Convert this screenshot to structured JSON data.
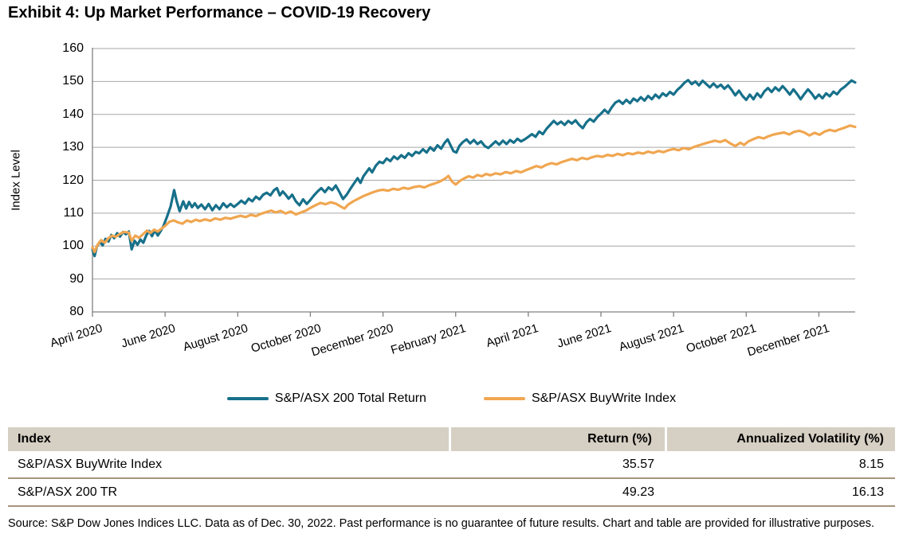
{
  "title": "Exhibit 4: Up Market Performance – COVID-19 Recovery",
  "source_note": "Source: S&P Dow Jones Indices LLC. Data as of Dec. 30, 2022. Past performance is no guarantee of future results. Chart and table are provided for illustrative purposes.",
  "colors": {
    "asx200_line": "#17708a",
    "buywrite_line": "#f0a650",
    "gridline": "#a6a6a6",
    "axis": "#808080",
    "table_header_bg": "#d6cfc3",
    "table_border": "#a5947c"
  },
  "table": {
    "columns": [
      "Index",
      "Return (%)",
      "Annualized Volatility (%)"
    ],
    "rows": [
      {
        "index": "S&P/ASX BuyWrite Index",
        "return": "35.57",
        "volatility": "8.15"
      },
      {
        "index": "S&P/ASX 200 TR",
        "return": "49.23",
        "volatility": "16.13"
      }
    ]
  },
  "chart_data": {
    "type": "line",
    "title": "Exhibit 4: Up Market Performance – COVID-19 Recovery",
    "xlabel": "",
    "ylabel": "Index Level",
    "ylim": [
      80,
      160
    ],
    "yticks": [
      80,
      90,
      100,
      110,
      120,
      130,
      140,
      150,
      160
    ],
    "grid": "horizontal",
    "legend_position": "bottom",
    "x_unit": "months since April 2020",
    "x_range": [
      0,
      21
    ],
    "x_tick_months": [
      0,
      2,
      4,
      6,
      8,
      10,
      12,
      14,
      16,
      18,
      20
    ],
    "x_tick_labels": [
      "April 2020",
      "June 2020",
      "August 2020",
      "October 2020",
      "December 2020",
      "February 2021",
      "April 2021",
      "June 2021",
      "August 2021",
      "October 2021",
      "December 2021"
    ],
    "series": [
      {
        "name": "S&P/ASX 200 Total Return",
        "color": "#17708a",
        "x": [
          0.0,
          0.06,
          0.12,
          0.2,
          0.28,
          0.36,
          0.44,
          0.52,
          0.6,
          0.68,
          0.76,
          0.84,
          0.92,
          1.0,
          1.08,
          1.16,
          1.24,
          1.32,
          1.4,
          1.48,
          1.56,
          1.64,
          1.72,
          1.8,
          1.88,
          1.96,
          2.05,
          2.15,
          2.25,
          2.32,
          2.4,
          2.5,
          2.58,
          2.66,
          2.74,
          2.82,
          2.9,
          3.0,
          3.1,
          3.2,
          3.3,
          3.4,
          3.5,
          3.6,
          3.7,
          3.8,
          3.9,
          4.0,
          4.1,
          4.2,
          4.3,
          4.4,
          4.5,
          4.6,
          4.7,
          4.8,
          4.9,
          5.0,
          5.08,
          5.16,
          5.24,
          5.32,
          5.4,
          5.5,
          5.6,
          5.7,
          5.8,
          5.9,
          6.0,
          6.1,
          6.2,
          6.3,
          6.4,
          6.5,
          6.6,
          6.7,
          6.8,
          6.9,
          7.0,
          7.1,
          7.2,
          7.3,
          7.38,
          7.46,
          7.54,
          7.62,
          7.7,
          7.8,
          7.9,
          8.0,
          8.1,
          8.2,
          8.3,
          8.4,
          8.5,
          8.6,
          8.7,
          8.8,
          8.9,
          9.0,
          9.1,
          9.2,
          9.3,
          9.4,
          9.5,
          9.6,
          9.7,
          9.78,
          9.86,
          9.94,
          10.02,
          10.1,
          10.2,
          10.3,
          10.4,
          10.5,
          10.6,
          10.7,
          10.8,
          10.9,
          11.0,
          11.1,
          11.2,
          11.3,
          11.4,
          11.5,
          11.6,
          11.7,
          11.8,
          11.9,
          12.0,
          12.1,
          12.2,
          12.3,
          12.4,
          12.5,
          12.6,
          12.7,
          12.8,
          12.9,
          13.0,
          13.1,
          13.2,
          13.3,
          13.4,
          13.5,
          13.6,
          13.7,
          13.8,
          13.9,
          14.0,
          14.1,
          14.2,
          14.3,
          14.4,
          14.5,
          14.6,
          14.7,
          14.8,
          14.9,
          15.0,
          15.1,
          15.2,
          15.3,
          15.4,
          15.5,
          15.6,
          15.7,
          15.8,
          15.9,
          16.0,
          16.1,
          16.2,
          16.3,
          16.4,
          16.5,
          16.6,
          16.7,
          16.8,
          16.9,
          17.0,
          17.1,
          17.2,
          17.3,
          17.4,
          17.5,
          17.6,
          17.7,
          17.8,
          17.9,
          18.0,
          18.1,
          18.2,
          18.3,
          18.4,
          18.5,
          18.6,
          18.7,
          18.8,
          18.9,
          19.0,
          19.1,
          19.2,
          19.3,
          19.4,
          19.5,
          19.6,
          19.7,
          19.8,
          19.9,
          20.0,
          20.1,
          20.2,
          20.3,
          20.4,
          20.5,
          20.6,
          20.7,
          20.8,
          20.9,
          21.0
        ],
        "values": [
          99.0,
          97.0,
          99.8,
          101.3,
          100.2,
          102.2,
          101.4,
          103.4,
          102.4,
          103.9,
          102.9,
          104.3,
          103.6,
          104.4,
          99.0,
          101.6,
          100.4,
          102.0,
          101.0,
          103.2,
          104.6,
          103.0,
          104.8,
          103.2,
          104.6,
          106.2,
          108.8,
          112.0,
          117.0,
          113.6,
          110.6,
          113.6,
          111.4,
          113.4,
          111.8,
          113.0,
          111.6,
          112.6,
          111.2,
          112.8,
          110.9,
          112.4,
          111.2,
          113.0,
          111.8,
          112.8,
          111.9,
          112.8,
          113.8,
          112.9,
          114.4,
          113.6,
          115.0,
          114.2,
          115.6,
          116.2,
          115.4,
          117.0,
          117.6,
          115.4,
          116.6,
          115.6,
          114.4,
          115.6,
          113.6,
          112.4,
          114.2,
          112.8,
          114.0,
          115.4,
          116.6,
          117.6,
          116.4,
          117.8,
          117.0,
          118.4,
          116.4,
          114.3,
          115.6,
          117.4,
          119.0,
          120.6,
          119.2,
          121.2,
          122.4,
          123.6,
          122.4,
          124.4,
          125.6,
          125.2,
          126.6,
          125.8,
          127.2,
          126.4,
          127.6,
          126.8,
          128.2,
          127.4,
          128.6,
          128.2,
          129.4,
          128.4,
          130.0,
          129.0,
          130.6,
          129.6,
          131.4,
          132.4,
          130.6,
          128.8,
          128.4,
          130.4,
          131.6,
          132.4,
          131.2,
          132.2,
          131.0,
          131.8,
          130.4,
          129.8,
          130.8,
          131.8,
          130.8,
          132.0,
          131.0,
          132.2,
          131.4,
          132.6,
          131.8,
          132.4,
          133.2,
          134.0,
          133.2,
          134.8,
          134.0,
          135.6,
          136.8,
          138.0,
          137.0,
          137.8,
          136.8,
          138.0,
          137.2,
          138.2,
          136.8,
          135.8,
          137.6,
          138.6,
          137.8,
          139.2,
          140.2,
          141.4,
          140.4,
          142.2,
          143.6,
          144.2,
          143.2,
          144.4,
          143.4,
          144.8,
          144.0,
          145.2,
          144.2,
          145.6,
          144.6,
          146.0,
          145.0,
          146.4,
          145.6,
          146.8,
          146.0,
          147.4,
          148.4,
          149.6,
          150.4,
          149.2,
          150.0,
          148.8,
          150.2,
          149.2,
          148.2,
          149.4,
          148.2,
          149.0,
          147.8,
          148.8,
          147.4,
          145.8,
          147.2,
          145.6,
          144.4,
          146.0,
          144.6,
          146.4,
          145.2,
          147.0,
          148.0,
          146.8,
          148.2,
          147.2,
          148.6,
          147.4,
          146.0,
          147.6,
          146.2,
          144.6,
          146.2,
          147.6,
          146.4,
          144.8,
          146.0,
          144.9,
          146.4,
          145.5,
          146.9,
          146.1,
          147.5,
          148.3,
          149.3,
          150.3,
          149.7
        ]
      },
      {
        "name": "S&P/ASX BuyWrite Index",
        "color": "#f0a650",
        "x": [
          0.0,
          0.06,
          0.14,
          0.24,
          0.34,
          0.44,
          0.54,
          0.64,
          0.74,
          0.86,
          1.0,
          1.08,
          1.18,
          1.28,
          1.38,
          1.5,
          1.6,
          1.7,
          1.8,
          1.9,
          2.0,
          2.12,
          2.24,
          2.36,
          2.48,
          2.6,
          2.72,
          2.84,
          2.96,
          3.1,
          3.24,
          3.38,
          3.52,
          3.66,
          3.8,
          3.94,
          4.08,
          4.22,
          4.36,
          4.5,
          4.64,
          4.78,
          4.92,
          5.04,
          5.18,
          5.32,
          5.46,
          5.6,
          5.74,
          5.88,
          6.0,
          6.14,
          6.28,
          6.42,
          6.56,
          6.7,
          6.84,
          6.94,
          7.04,
          7.18,
          7.32,
          7.46,
          7.6,
          7.74,
          7.88,
          8.0,
          8.14,
          8.28,
          8.42,
          8.56,
          8.7,
          8.84,
          9.0,
          9.14,
          9.28,
          9.42,
          9.56,
          9.7,
          9.8,
          9.9,
          10.0,
          10.12,
          10.24,
          10.36,
          10.48,
          10.6,
          10.72,
          10.84,
          10.96,
          11.1,
          11.24,
          11.38,
          11.52,
          11.66,
          11.8,
          11.94,
          12.08,
          12.22,
          12.36,
          12.5,
          12.64,
          12.78,
          12.92,
          13.06,
          13.2,
          13.34,
          13.48,
          13.62,
          13.76,
          13.9,
          14.04,
          14.18,
          14.32,
          14.46,
          14.6,
          14.74,
          14.88,
          15.02,
          15.16,
          15.3,
          15.44,
          15.58,
          15.72,
          15.86,
          16.0,
          16.14,
          16.28,
          16.42,
          16.56,
          16.7,
          16.84,
          17.0,
          17.14,
          17.28,
          17.42,
          17.56,
          17.7,
          17.84,
          17.94,
          18.06,
          18.2,
          18.34,
          18.48,
          18.62,
          18.76,
          18.9,
          19.04,
          19.18,
          19.32,
          19.46,
          19.6,
          19.74,
          19.88,
          20.02,
          20.16,
          20.3,
          20.44,
          20.58,
          20.72,
          20.86,
          21.0
        ],
        "values": [
          99.6,
          98.2,
          100.4,
          101.8,
          101.0,
          102.4,
          103.2,
          102.8,
          103.6,
          104.3,
          104.1,
          101.6,
          103.2,
          102.5,
          103.5,
          104.7,
          104.0,
          105.0,
          104.4,
          105.3,
          106.1,
          107.4,
          107.8,
          107.2,
          106.8,
          107.8,
          107.3,
          108.0,
          107.6,
          108.1,
          107.7,
          108.4,
          108.0,
          108.6,
          108.3,
          108.8,
          109.2,
          108.8,
          109.5,
          109.1,
          109.8,
          110.3,
          110.8,
          110.2,
          110.7,
          109.9,
          110.5,
          109.6,
          110.2,
          110.8,
          111.6,
          112.4,
          113.1,
          112.7,
          113.3,
          112.9,
          112.0,
          111.4,
          112.6,
          113.6,
          114.4,
          115.2,
          115.8,
          116.4,
          116.9,
          117.1,
          116.8,
          117.4,
          117.1,
          117.7,
          117.4,
          117.9,
          118.2,
          117.8,
          118.5,
          119.0,
          119.6,
          120.4,
          121.3,
          119.6,
          118.7,
          119.8,
          120.6,
          121.2,
          120.8,
          121.6,
          121.2,
          121.9,
          121.5,
          122.1,
          121.8,
          122.5,
          122.1,
          122.8,
          122.4,
          123.1,
          123.7,
          124.3,
          123.9,
          124.7,
          125.2,
          124.8,
          125.5,
          126.0,
          126.5,
          126.1,
          126.8,
          126.4,
          127.0,
          127.4,
          127.1,
          127.7,
          127.4,
          128.0,
          127.6,
          128.2,
          127.9,
          128.4,
          128.1,
          128.7,
          128.3,
          128.9,
          128.5,
          129.1,
          129.5,
          129.1,
          129.8,
          129.4,
          130.1,
          130.6,
          131.1,
          131.6,
          132.0,
          131.6,
          132.2,
          131.2,
          130.4,
          131.4,
          130.7,
          131.8,
          132.5,
          133.1,
          132.7,
          133.4,
          133.9,
          134.2,
          134.5,
          133.9,
          134.7,
          135.0,
          134.5,
          133.6,
          134.4,
          133.8,
          134.8,
          135.3,
          134.9,
          135.5,
          136.0,
          136.6,
          136.2
        ]
      }
    ]
  }
}
